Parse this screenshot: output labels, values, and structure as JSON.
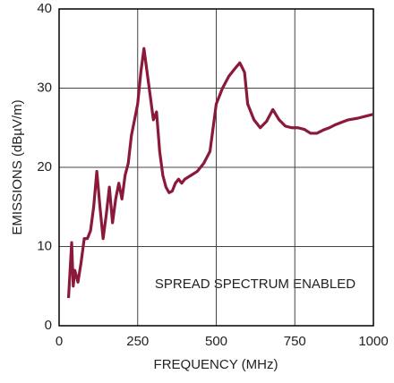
{
  "chart_data": {
    "type": "line",
    "xlabel": "FREQUENCY (MHz)",
    "ylabel": "EMISSIONS (dBµV/m)",
    "annotation": "SPREAD SPECTRUM ENABLED",
    "xlim": [
      0,
      1000
    ],
    "xticks": [
      0,
      250,
      500,
      750,
      1000
    ],
    "ylim": [
      0,
      40
    ],
    "yticks": [
      0,
      10,
      20,
      30,
      40
    ],
    "grid": true,
    "x": [
      30,
      40,
      45,
      50,
      60,
      70,
      80,
      90,
      100,
      110,
      120,
      130,
      140,
      150,
      160,
      170,
      180,
      190,
      200,
      210,
      220,
      230,
      240,
      250,
      260,
      270,
      280,
      290,
      300,
      310,
      320,
      330,
      340,
      350,
      360,
      370,
      380,
      390,
      400,
      420,
      440,
      460,
      480,
      490,
      500,
      520,
      540,
      560,
      575,
      590,
      600,
      620,
      640,
      660,
      680,
      700,
      720,
      740,
      760,
      780,
      800,
      820,
      840,
      860,
      880,
      900,
      920,
      950,
      980,
      1000
    ],
    "series": [
      {
        "color": "#8b1a3a",
        "values": [
          3.5,
          10.5,
          5,
          7,
          5.5,
          8,
          11,
          11,
          12,
          15,
          19.5,
          15,
          11,
          14,
          17.5,
          13,
          16,
          18,
          16,
          19,
          20.5,
          24,
          26,
          28,
          32,
          35,
          32,
          29,
          26,
          27,
          22,
          19,
          17.5,
          16.8,
          17,
          18,
          18.5,
          18,
          18.5,
          19,
          19.5,
          20.5,
          22,
          25,
          28,
          30,
          31.5,
          32.5,
          33.2,
          32,
          28,
          26,
          25,
          25.8,
          27.3,
          26,
          25.2,
          25,
          25,
          24.8,
          24.3,
          24.3,
          24.7,
          25,
          25.4,
          25.7,
          26,
          26.2,
          26.5,
          26.7
        ]
      }
    ]
  }
}
